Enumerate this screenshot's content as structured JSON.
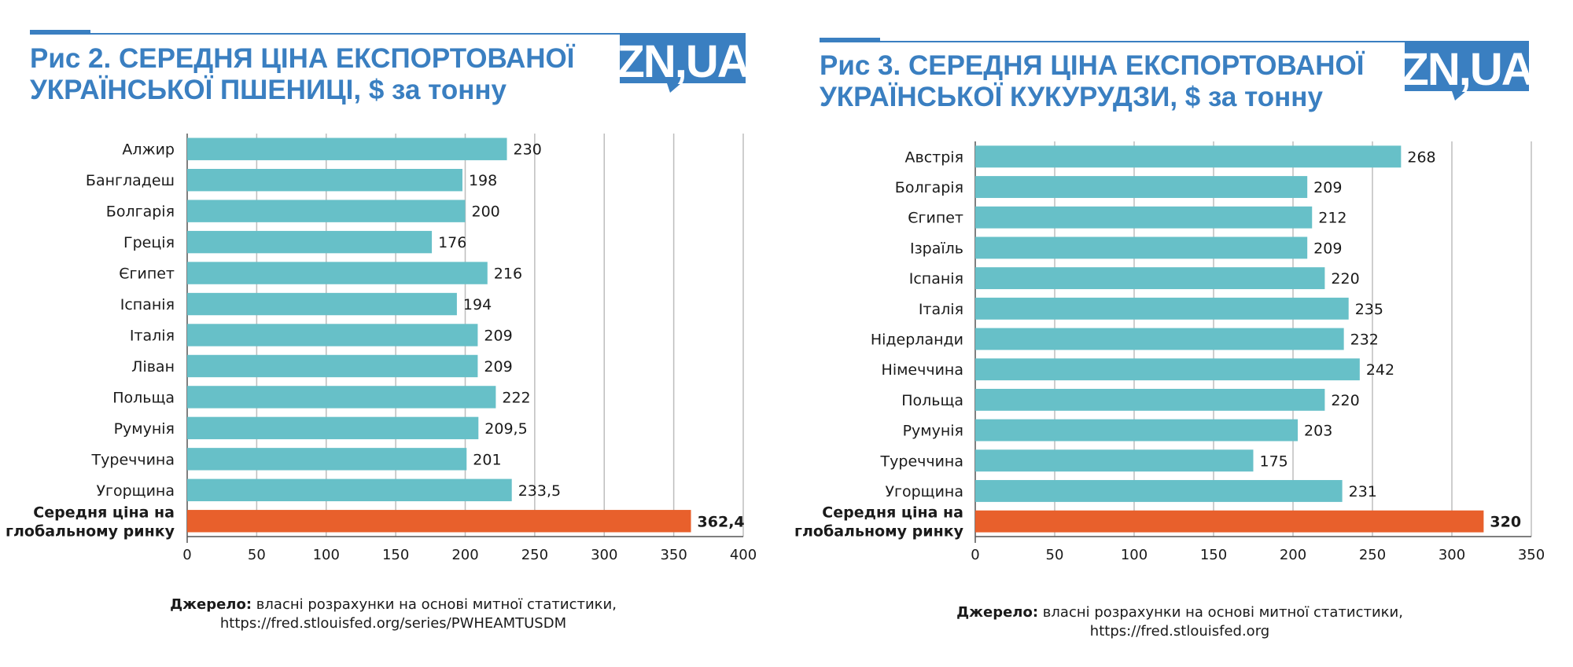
{
  "charts": [
    {
      "title_line1": "Рис 2. СЕРЕДНЯ ЦІНА ЕКСПОРТОВАНОЇ",
      "title_line2": "УКРАЇНСЬКОЇ ПШЕНИЦІ, $ за тонну",
      "logo": "ZN,UA",
      "source_label": "Джерело:",
      "source_text": "власні розрахунки на основі митної статистики,",
      "source_url": "https://fred.stlouisfed.org/series/PWHEAMTUSDM"
    },
    {
      "title_line1": "Рис 3. СЕРЕДНЯ ЦІНА ЕКСПОРТОВАНОЇ",
      "title_line2": "УКРАЇНСЬКОЇ КУКУРУДЗИ, $ за тонну",
      "logo": "ZN,UA",
      "source_label": "Джерело:",
      "source_text": "власні розрахунки на основі митної статистики,",
      "source_url": "https://fred.stlouisfed.org"
    }
  ],
  "colors": {
    "bar": "#67c0c8",
    "highlight": "#e8602c",
    "title": "#3a7fc1",
    "logo_bg": "#3a7fc1",
    "grid": "#bdbdbd"
  },
  "chart_data": [
    {
      "type": "bar",
      "orientation": "horizontal",
      "title": "Рис 2. СЕРЕДНЯ ЦІНА ЕКСПОРТОВАНОЇ УКРАЇНСЬКОЇ ПШЕНИЦІ, $ за тонну",
      "categories": [
        "Алжир",
        "Бангладеш",
        "Болгарія",
        "Греція",
        "Єгипет",
        "Іспанія",
        "Італія",
        "Ліван",
        "Польща",
        "Румунія",
        "Туреччина",
        "Угорщина",
        "Середня ціна на глобальному ринку"
      ],
      "category_lines": [
        [
          "Алжир"
        ],
        [
          "Бангладеш"
        ],
        [
          "Болгарія"
        ],
        [
          "Греція"
        ],
        [
          "Єгипет"
        ],
        [
          "Іспанія"
        ],
        [
          "Італія"
        ],
        [
          "Ліван"
        ],
        [
          "Польща"
        ],
        [
          "Румунія"
        ],
        [
          "Туреччина"
        ],
        [
          "Угорщина"
        ],
        [
          "Середня ціна на",
          "глобальному ринку"
        ]
      ],
      "values": [
        230,
        198,
        200,
        176,
        216,
        194,
        209,
        209,
        222,
        209.5,
        201,
        233.5,
        362.4
      ],
      "value_labels": [
        "230",
        "198",
        "200",
        "176",
        "216",
        "194",
        "209",
        "209",
        "222",
        "209,5",
        "201",
        "233,5",
        "362,4"
      ],
      "highlight_index": 12,
      "xlim": [
        0,
        400
      ],
      "xticks": [
        0,
        50,
        100,
        150,
        200,
        250,
        300,
        350,
        400
      ],
      "grid": true
    },
    {
      "type": "bar",
      "orientation": "horizontal",
      "title": "Рис 3. СЕРЕДНЯ ЦІНА ЕКСПОРТОВАНОЇ УКРАЇНСЬКОЇ КУКУРУДЗИ, $ за тонну",
      "categories": [
        "Австрія",
        "Болгарія",
        "Єгипет",
        "Ізраїль",
        "Іспанія",
        "Італія",
        "Нідерланди",
        "Німеччина",
        "Польща",
        "Румунія",
        "Туреччина",
        "Угорщина",
        "Середня ціна на глобальному ринку"
      ],
      "category_lines": [
        [
          "Австрія"
        ],
        [
          "Болгарія"
        ],
        [
          "Єгипет"
        ],
        [
          "Ізраїль"
        ],
        [
          "Іспанія"
        ],
        [
          "Італія"
        ],
        [
          "Нідерланди"
        ],
        [
          "Німеччина"
        ],
        [
          "Польща"
        ],
        [
          "Румунія"
        ],
        [
          "Туреччина"
        ],
        [
          "Угорщина"
        ],
        [
          "Середня ціна на",
          "глобальному ринку"
        ]
      ],
      "values": [
        268,
        209,
        212,
        209,
        220,
        235,
        232,
        242,
        220,
        203,
        175,
        231,
        320
      ],
      "value_labels": [
        "268",
        "209",
        "212",
        "209",
        "220",
        "235",
        "232",
        "242",
        "220",
        "203",
        "175",
        "231",
        "320"
      ],
      "highlight_index": 12,
      "xlim": [
        0,
        350
      ],
      "xticks": [
        0,
        50,
        100,
        150,
        200,
        250,
        300,
        350
      ],
      "grid": true
    }
  ]
}
